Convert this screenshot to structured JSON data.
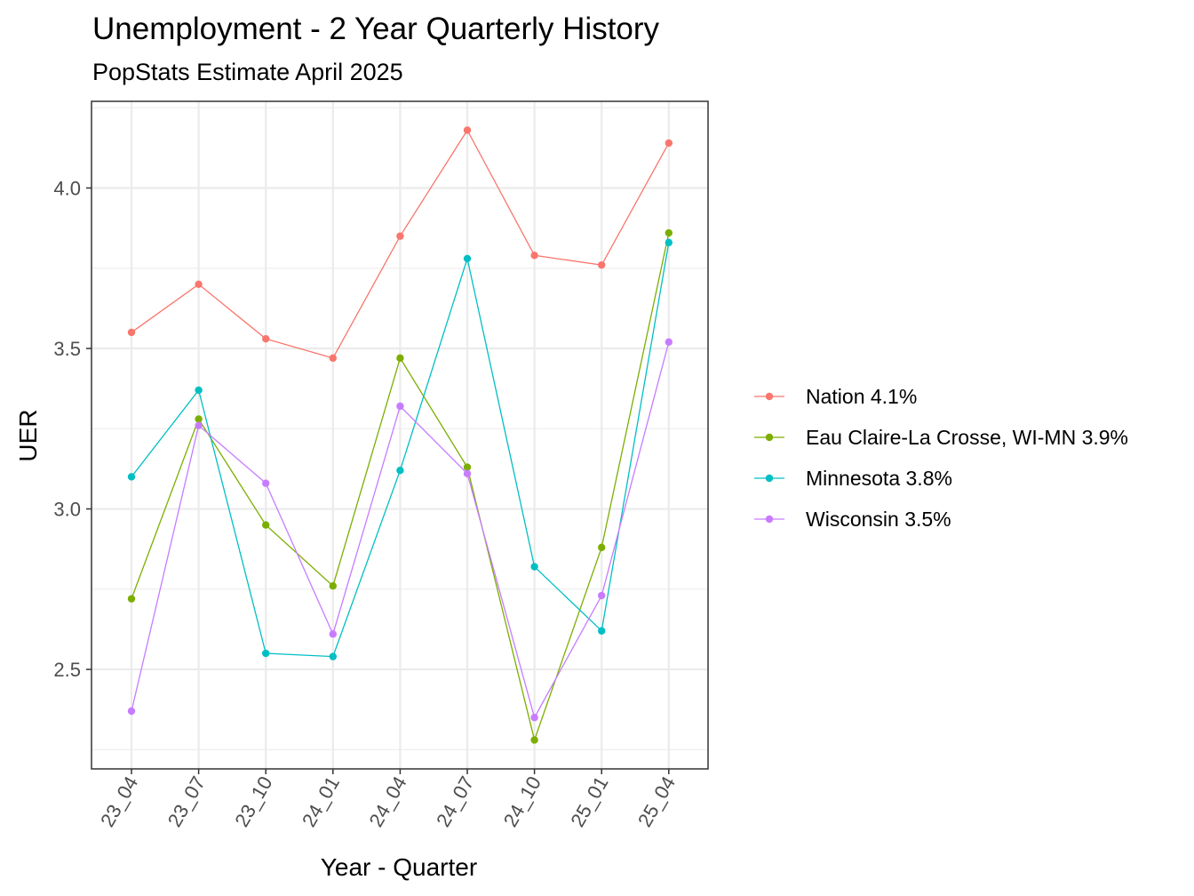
{
  "chart_data": {
    "type": "line",
    "title": "Unemployment - 2 Year Quarterly History",
    "subtitle": "PopStats Estimate April 2025",
    "xlabel": "Year - Quarter",
    "ylabel": "UER",
    "categories": [
      "23_04",
      "23_07",
      "23_10",
      "24_01",
      "24_04",
      "24_07",
      "24_10",
      "25_01",
      "25_04"
    ],
    "y_ticks": [
      2.5,
      3.0,
      3.5,
      4.0
    ],
    "y_tick_labels": [
      "2.5",
      "3.0",
      "3.5",
      "4.0"
    ],
    "ylim": [
      2.19,
      4.27
    ],
    "grid": true,
    "legend_position": "right",
    "series": [
      {
        "name": "Nation 4.1%",
        "color": "#F8766D",
        "values": [
          3.55,
          3.7,
          3.53,
          3.47,
          3.85,
          4.18,
          3.79,
          3.76,
          4.14
        ]
      },
      {
        "name": "Eau Claire-La Crosse, WI-MN 3.9%",
        "color": "#7CAE00",
        "values": [
          2.72,
          3.28,
          2.95,
          2.76,
          3.47,
          3.13,
          2.28,
          2.88,
          3.86
        ]
      },
      {
        "name": "Minnesota 3.8%",
        "color": "#00BFC4",
        "values": [
          3.1,
          3.37,
          2.55,
          2.54,
          3.12,
          3.78,
          2.82,
          2.62,
          3.83
        ]
      },
      {
        "name": "Wisconsin 3.5%",
        "color": "#C77CFF",
        "values": [
          2.37,
          3.26,
          3.08,
          2.61,
          3.32,
          3.11,
          2.35,
          2.73,
          3.52
        ]
      }
    ]
  }
}
